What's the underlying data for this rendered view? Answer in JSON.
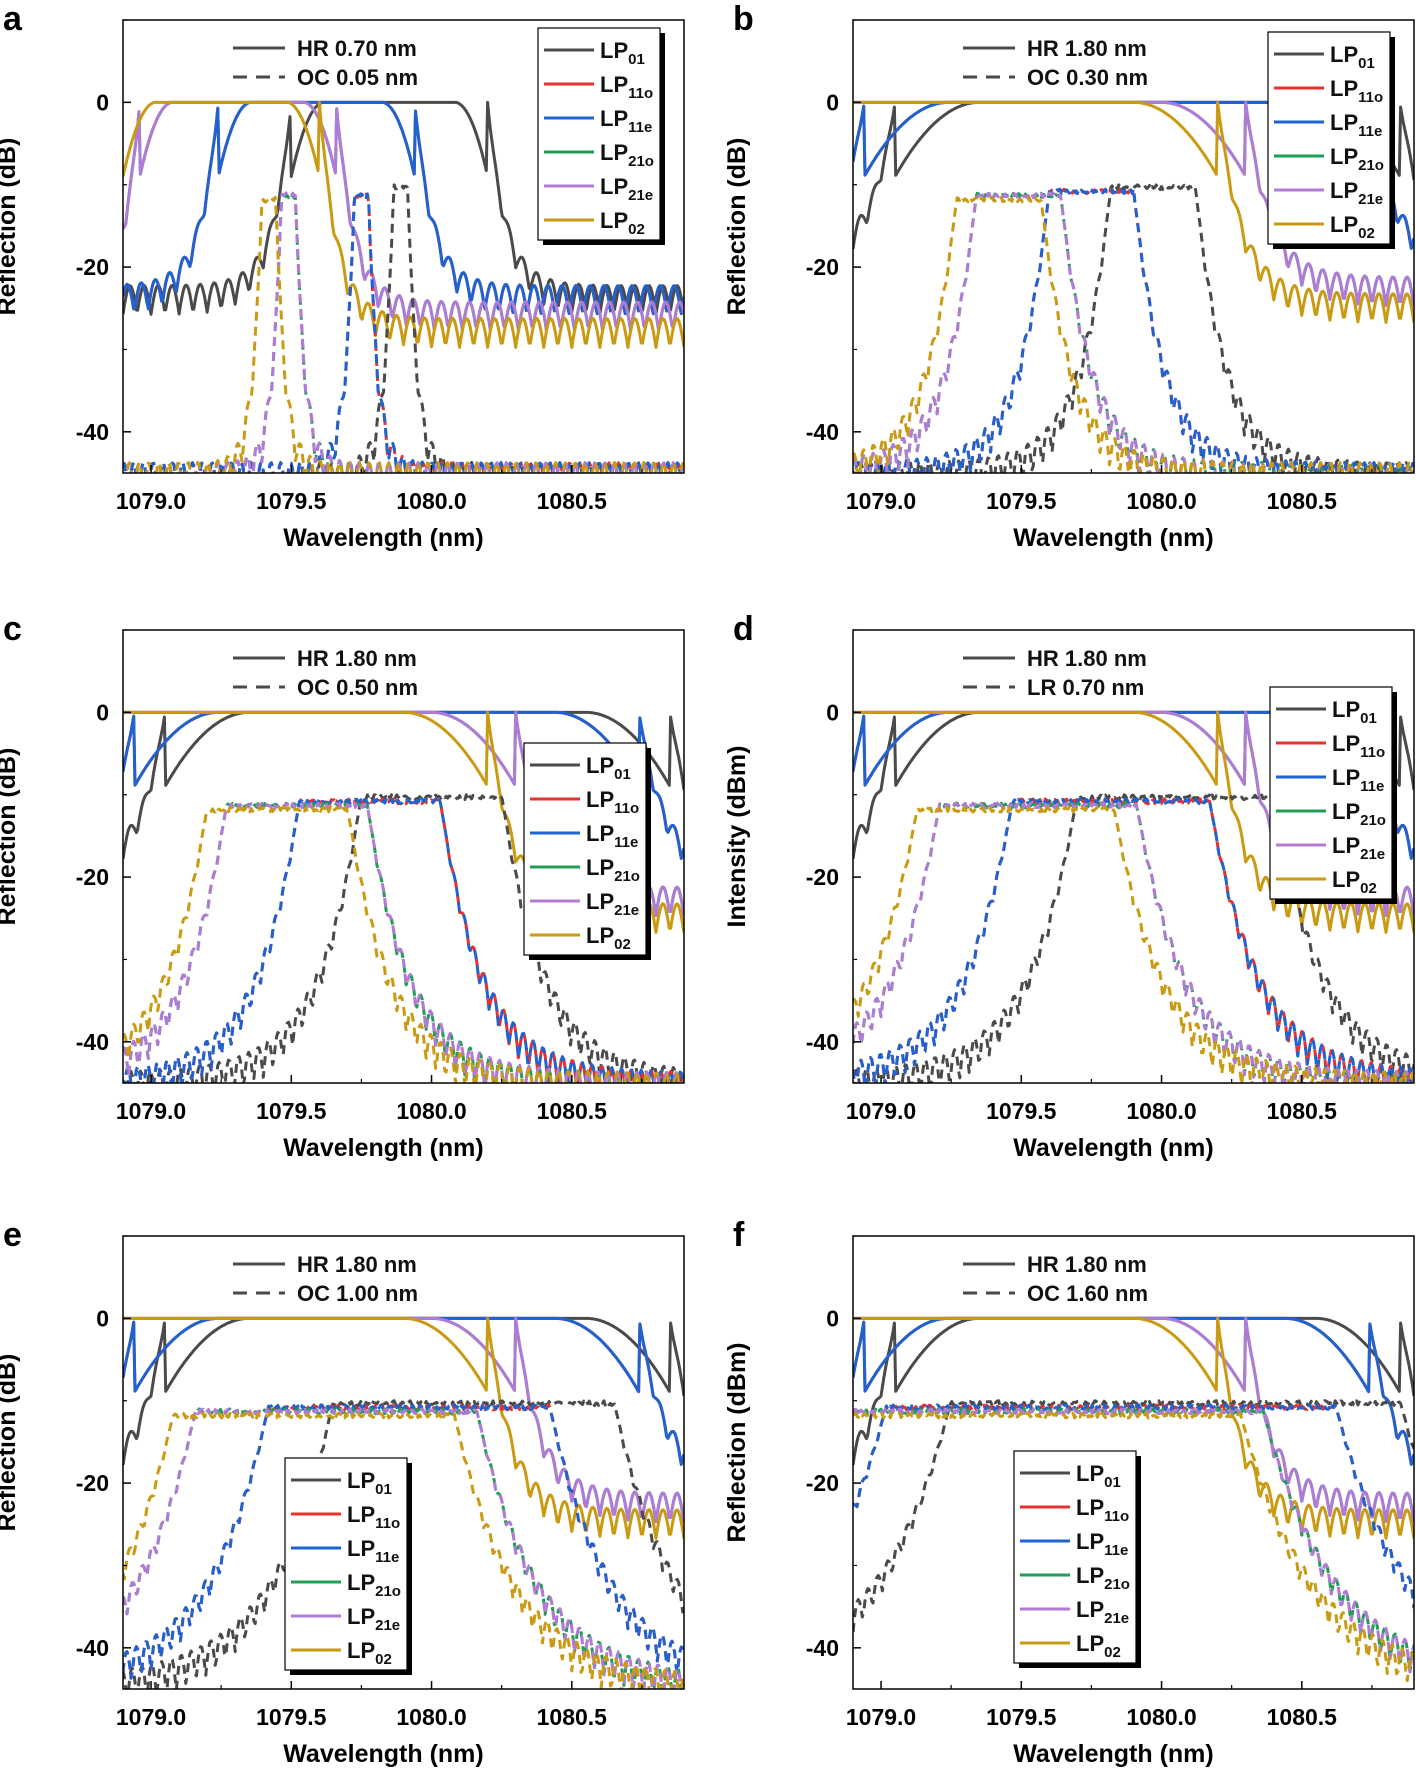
{
  "figure": {
    "colors": {
      "LP01": "#4a4a4a",
      "LP11o": "#e8302f",
      "LP11e": "#1f63d1",
      "LP21o": "#1f9e55",
      "LP21e": "#b07ad6",
      "LP02": "#c99a12"
    },
    "mode_legend": [
      {
        "key": "LP01",
        "base": "LP",
        "sub": "01"
      },
      {
        "key": "LP11o",
        "base": "LP",
        "sub": "11o"
      },
      {
        "key": "LP11e",
        "base": "LP",
        "sub": "11e"
      },
      {
        "key": "LP21o",
        "base": "LP",
        "sub": "21o"
      },
      {
        "key": "LP21e",
        "base": "LP",
        "sub": "21e"
      },
      {
        "key": "LP02",
        "base": "LP",
        "sub": "02"
      }
    ],
    "x_ticks": [
      "1079.0",
      "1079.5",
      "1080.0",
      "1080.5"
    ],
    "xlabel": "Wavelength (nm)"
  },
  "chart_data": [
    {
      "type": "line",
      "panel": "a",
      "ylabel": "Reflection (dB)",
      "xlim": [
        1078.9,
        1080.9
      ],
      "ylim": [
        -45,
        10
      ],
      "y_ticks": [
        "0",
        "-20",
        "-40"
      ],
      "bandwidth_legend": {
        "solid": "HR 0.70 nm",
        "dashed": "OC 0.05 nm"
      },
      "series": [
        {
          "mode": "LP01",
          "style": "solid",
          "center": 1079.85,
          "fwhm": 0.7,
          "peak": 0,
          "edge": 0.03,
          "floor": -24
        },
        {
          "mode": "LP11o",
          "style": "solid",
          "center": 1079.59,
          "fwhm": 0.7,
          "peak": 0,
          "edge": 0.03,
          "floor": -24
        },
        {
          "mode": "LP11e",
          "style": "solid",
          "center": 1079.59,
          "fwhm": 0.7,
          "peak": 0,
          "edge": 0.03,
          "floor": -24
        },
        {
          "mode": "LP21o",
          "style": "solid",
          "center": 1079.31,
          "fwhm": 0.7,
          "peak": 0,
          "edge": 0.03,
          "floor": -26
        },
        {
          "mode": "LP21e",
          "style": "solid",
          "center": 1079.31,
          "fwhm": 0.7,
          "peak": 0,
          "edge": 0.03,
          "floor": -26
        },
        {
          "mode": "LP02",
          "style": "solid",
          "center": 1079.25,
          "fwhm": 0.7,
          "peak": 0,
          "edge": 0.03,
          "floor": -28
        },
        {
          "mode": "LP01",
          "style": "dashed",
          "center": 1079.89,
          "fwhm": 0.05,
          "peak": -10,
          "edge": 0.015,
          "floor": -46
        },
        {
          "mode": "LP11o",
          "style": "dashed",
          "center": 1079.75,
          "fwhm": 0.05,
          "peak": -11,
          "edge": 0.015,
          "floor": -46
        },
        {
          "mode": "LP11e",
          "style": "dashed",
          "center": 1079.75,
          "fwhm": 0.05,
          "peak": -11,
          "edge": 0.015,
          "floor": -46
        },
        {
          "mode": "LP21o",
          "style": "dashed",
          "center": 1079.49,
          "fwhm": 0.05,
          "peak": -11,
          "edge": 0.015,
          "floor": -46
        },
        {
          "mode": "LP21e",
          "style": "dashed",
          "center": 1079.49,
          "fwhm": 0.05,
          "peak": -11,
          "edge": 0.015,
          "floor": -46
        },
        {
          "mode": "LP02",
          "style": "dashed",
          "center": 1079.42,
          "fwhm": 0.05,
          "peak": -11.5,
          "edge": 0.015,
          "floor": -46
        }
      ]
    },
    {
      "type": "line",
      "panel": "b",
      "ylabel": "Reflection (dB)",
      "xlim": [
        1078.9,
        1080.9
      ],
      "ylim": [
        -45,
        10
      ],
      "y_ticks": [
        "0",
        "-20",
        "-40"
      ],
      "bandwidth_legend": {
        "solid": "HR 1.80 nm",
        "dashed": "OC 0.30 nm"
      },
      "series": [
        {
          "mode": "LP01",
          "style": "solid",
          "center": 1079.95,
          "fwhm": 1.8,
          "peak": 0,
          "edge": 0.04,
          "floor": -20
        },
        {
          "mode": "LP11o",
          "style": "solid",
          "center": 1079.84,
          "fwhm": 1.8,
          "peak": 0,
          "edge": 0.04,
          "floor": -20
        },
        {
          "mode": "LP11e",
          "style": "solid",
          "center": 1079.84,
          "fwhm": 1.8,
          "peak": 0,
          "edge": 0.04,
          "floor": -20
        },
        {
          "mode": "LP21o",
          "style": "solid",
          "center": 1079.4,
          "fwhm": 1.8,
          "peak": 0,
          "edge": 0.04,
          "floor": -23
        },
        {
          "mode": "LP21e",
          "style": "solid",
          "center": 1079.4,
          "fwhm": 1.8,
          "peak": 0,
          "edge": 0.04,
          "floor": -23
        },
        {
          "mode": "LP02",
          "style": "solid",
          "center": 1079.3,
          "fwhm": 1.8,
          "peak": 0,
          "edge": 0.04,
          "floor": -25
        },
        {
          "mode": "LP01",
          "style": "dashed",
          "center": 1079.97,
          "fwhm": 0.3,
          "peak": -10,
          "edge": 0.05,
          "floor": -46
        },
        {
          "mode": "LP11o",
          "style": "dashed",
          "center": 1079.75,
          "fwhm": 0.3,
          "peak": -10.5,
          "edge": 0.05,
          "floor": -46
        },
        {
          "mode": "LP11e",
          "style": "dashed",
          "center": 1079.75,
          "fwhm": 0.3,
          "peak": -10.5,
          "edge": 0.05,
          "floor": -46
        },
        {
          "mode": "LP21o",
          "style": "dashed",
          "center": 1079.49,
          "fwhm": 0.3,
          "peak": -11,
          "edge": 0.05,
          "floor": -46
        },
        {
          "mode": "LP21e",
          "style": "dashed",
          "center": 1079.49,
          "fwhm": 0.3,
          "peak": -11,
          "edge": 0.05,
          "floor": -46
        },
        {
          "mode": "LP02",
          "style": "dashed",
          "center": 1079.42,
          "fwhm": 0.3,
          "peak": -11.5,
          "edge": 0.05,
          "floor": -46
        }
      ]
    },
    {
      "type": "line",
      "panel": "c",
      "ylabel": "Reflection (dB)",
      "xlim": [
        1078.9,
        1080.9
      ],
      "ylim": [
        -45,
        10
      ],
      "y_ticks": [
        "0",
        "-20",
        "-40"
      ],
      "bandwidth_legend": {
        "solid": "HR 1.80 nm",
        "dashed": "OC 0.50 nm"
      },
      "series": [
        {
          "mode": "LP01",
          "style": "solid",
          "center": 1079.95,
          "fwhm": 1.8,
          "peak": 0,
          "edge": 0.04,
          "floor": -20
        },
        {
          "mode": "LP11o",
          "style": "solid",
          "center": 1079.84,
          "fwhm": 1.8,
          "peak": 0,
          "edge": 0.04,
          "floor": -20
        },
        {
          "mode": "LP11e",
          "style": "solid",
          "center": 1079.84,
          "fwhm": 1.8,
          "peak": 0,
          "edge": 0.04,
          "floor": -20
        },
        {
          "mode": "LP21o",
          "style": "solid",
          "center": 1079.4,
          "fwhm": 1.8,
          "peak": 0,
          "edge": 0.04,
          "floor": -23
        },
        {
          "mode": "LP21e",
          "style": "solid",
          "center": 1079.4,
          "fwhm": 1.8,
          "peak": 0,
          "edge": 0.04,
          "floor": -23
        },
        {
          "mode": "LP02",
          "style": "solid",
          "center": 1079.3,
          "fwhm": 1.8,
          "peak": 0,
          "edge": 0.04,
          "floor": -25
        },
        {
          "mode": "LP01",
          "style": "dashed",
          "center": 1080.0,
          "fwhm": 0.5,
          "peak": -10,
          "edge": 0.07,
          "floor": -46
        },
        {
          "mode": "LP11o",
          "style": "dashed",
          "center": 1079.78,
          "fwhm": 0.5,
          "peak": -10.5,
          "edge": 0.07,
          "floor": -46
        },
        {
          "mode": "LP11e",
          "style": "dashed",
          "center": 1079.78,
          "fwhm": 0.5,
          "peak": -10.5,
          "edge": 0.07,
          "floor": -46
        },
        {
          "mode": "LP21o",
          "style": "dashed",
          "center": 1079.52,
          "fwhm": 0.5,
          "peak": -11,
          "edge": 0.07,
          "floor": -46
        },
        {
          "mode": "LP21e",
          "style": "dashed",
          "center": 1079.52,
          "fwhm": 0.5,
          "peak": -11,
          "edge": 0.07,
          "floor": -46
        },
        {
          "mode": "LP02",
          "style": "dashed",
          "center": 1079.45,
          "fwhm": 0.5,
          "peak": -11.5,
          "edge": 0.07,
          "floor": -46
        }
      ]
    },
    {
      "type": "line",
      "panel": "d",
      "ylabel": "Intensity (dBm)",
      "xlim": [
        1078.9,
        1080.9
      ],
      "ylim": [
        -45,
        10
      ],
      "y_ticks": [
        "0",
        "-20",
        "-40"
      ],
      "bandwidth_legend": {
        "solid": "HR 1.80 nm",
        "dashed": "LR 0.70 nm"
      },
      "series": [
        {
          "mode": "LP01",
          "style": "solid",
          "center": 1079.95,
          "fwhm": 1.8,
          "peak": 0,
          "edge": 0.04,
          "floor": -20
        },
        {
          "mode": "LP11o",
          "style": "solid",
          "center": 1079.84,
          "fwhm": 1.8,
          "peak": 0,
          "edge": 0.04,
          "floor": -20
        },
        {
          "mode": "LP11e",
          "style": "solid",
          "center": 1079.84,
          "fwhm": 1.8,
          "peak": 0,
          "edge": 0.04,
          "floor": -20
        },
        {
          "mode": "LP21o",
          "style": "solid",
          "center": 1079.4,
          "fwhm": 1.8,
          "peak": 0,
          "edge": 0.04,
          "floor": -23
        },
        {
          "mode": "LP21e",
          "style": "solid",
          "center": 1079.4,
          "fwhm": 1.8,
          "peak": 0,
          "edge": 0.04,
          "floor": -23
        },
        {
          "mode": "LP02",
          "style": "solid",
          "center": 1079.3,
          "fwhm": 1.8,
          "peak": 0,
          "edge": 0.04,
          "floor": -25
        },
        {
          "mode": "LP01",
          "style": "dashed",
          "center": 1080.05,
          "fwhm": 0.7,
          "peak": -10,
          "edge": 0.08,
          "floor": -46
        },
        {
          "mode": "LP11o",
          "style": "dashed",
          "center": 1079.82,
          "fwhm": 0.7,
          "peak": -10.5,
          "edge": 0.08,
          "floor": -46
        },
        {
          "mode": "LP11e",
          "style": "dashed",
          "center": 1079.82,
          "fwhm": 0.7,
          "peak": -10.5,
          "edge": 0.08,
          "floor": -46
        },
        {
          "mode": "LP21o",
          "style": "dashed",
          "center": 1079.56,
          "fwhm": 0.7,
          "peak": -11,
          "edge": 0.08,
          "floor": -46
        },
        {
          "mode": "LP21e",
          "style": "dashed",
          "center": 1079.56,
          "fwhm": 0.7,
          "peak": -11,
          "edge": 0.08,
          "floor": -46
        },
        {
          "mode": "LP02",
          "style": "dashed",
          "center": 1079.48,
          "fwhm": 0.7,
          "peak": -11.5,
          "edge": 0.08,
          "floor": -46
        }
      ]
    },
    {
      "type": "line",
      "panel": "e",
      "ylabel": "Reflection (dB)",
      "xlim": [
        1078.9,
        1080.9
      ],
      "ylim": [
        -45,
        10
      ],
      "y_ticks": [
        "0",
        "-20",
        "-40"
      ],
      "bandwidth_legend": {
        "solid": "HR 1.80 nm",
        "dashed": "OC 1.00 nm"
      },
      "series": [
        {
          "mode": "LP01",
          "style": "solid",
          "center": 1079.95,
          "fwhm": 1.8,
          "peak": 0,
          "edge": 0.04,
          "floor": -20
        },
        {
          "mode": "LP11o",
          "style": "solid",
          "center": 1079.84,
          "fwhm": 1.8,
          "peak": 0,
          "edge": 0.04,
          "floor": -20
        },
        {
          "mode": "LP11e",
          "style": "solid",
          "center": 1079.84,
          "fwhm": 1.8,
          "peak": 0,
          "edge": 0.04,
          "floor": -20
        },
        {
          "mode": "LP21o",
          "style": "solid",
          "center": 1079.4,
          "fwhm": 1.8,
          "peak": 0,
          "edge": 0.04,
          "floor": -23
        },
        {
          "mode": "LP21e",
          "style": "solid",
          "center": 1079.4,
          "fwhm": 1.8,
          "peak": 0,
          "edge": 0.04,
          "floor": -23
        },
        {
          "mode": "LP02",
          "style": "solid",
          "center": 1079.3,
          "fwhm": 1.8,
          "peak": 0,
          "edge": 0.04,
          "floor": -25
        },
        {
          "mode": "LP01",
          "style": "dashed",
          "center": 1080.15,
          "fwhm": 1.0,
          "peak": -10,
          "edge": 0.1,
          "floor": -46
        },
        {
          "mode": "LP11o",
          "style": "dashed",
          "center": 1079.92,
          "fwhm": 1.0,
          "peak": -10.5,
          "edge": 0.1,
          "floor": -46
        },
        {
          "mode": "LP11e",
          "style": "dashed",
          "center": 1079.92,
          "fwhm": 1.0,
          "peak": -10.5,
          "edge": 0.1,
          "floor": -46
        },
        {
          "mode": "LP21o",
          "style": "dashed",
          "center": 1079.66,
          "fwhm": 1.0,
          "peak": -11,
          "edge": 0.1,
          "floor": -46
        },
        {
          "mode": "LP21e",
          "style": "dashed",
          "center": 1079.66,
          "fwhm": 1.0,
          "peak": -11,
          "edge": 0.1,
          "floor": -46
        },
        {
          "mode": "LP02",
          "style": "dashed",
          "center": 1079.58,
          "fwhm": 1.0,
          "peak": -11.5,
          "edge": 0.1,
          "floor": -46
        }
      ]
    },
    {
      "type": "line",
      "panel": "f",
      "ylabel": "Reflection (dBm)",
      "xlim": [
        1078.9,
        1080.9
      ],
      "ylim": [
        -45,
        10
      ],
      "y_ticks": [
        "0",
        "-20",
        "-40"
      ],
      "bandwidth_legend": {
        "solid": "HR 1.80 nm",
        "dashed": "OC 1.60 nm"
      },
      "series": [
        {
          "mode": "LP01",
          "style": "solid",
          "center": 1079.95,
          "fwhm": 1.8,
          "peak": 0,
          "edge": 0.04,
          "floor": -20
        },
        {
          "mode": "LP11o",
          "style": "solid",
          "center": 1079.84,
          "fwhm": 1.8,
          "peak": 0,
          "edge": 0.04,
          "floor": -20
        },
        {
          "mode": "LP11e",
          "style": "solid",
          "center": 1079.84,
          "fwhm": 1.8,
          "peak": 0,
          "edge": 0.04,
          "floor": -20
        },
        {
          "mode": "LP21o",
          "style": "solid",
          "center": 1079.4,
          "fwhm": 1.8,
          "peak": 0,
          "edge": 0.04,
          "floor": -23
        },
        {
          "mode": "LP21e",
          "style": "solid",
          "center": 1079.4,
          "fwhm": 1.8,
          "peak": 0,
          "edge": 0.04,
          "floor": -23
        },
        {
          "mode": "LP02",
          "style": "solid",
          "center": 1079.3,
          "fwhm": 1.8,
          "peak": 0,
          "edge": 0.04,
          "floor": -25
        },
        {
          "mode": "LP01",
          "style": "dashed",
          "center": 1080.05,
          "fwhm": 1.6,
          "peak": -10,
          "edge": 0.12,
          "floor": -46
        },
        {
          "mode": "LP11o",
          "style": "dashed",
          "center": 1079.82,
          "fwhm": 1.6,
          "peak": -10.5,
          "edge": 0.12,
          "floor": -46
        },
        {
          "mode": "LP11e",
          "style": "dashed",
          "center": 1079.82,
          "fwhm": 1.6,
          "peak": -10.5,
          "edge": 0.12,
          "floor": -46
        },
        {
          "mode": "LP21o",
          "style": "dashed",
          "center": 1079.56,
          "fwhm": 1.6,
          "peak": -11,
          "edge": 0.12,
          "floor": -46
        },
        {
          "mode": "LP21e",
          "style": "dashed",
          "center": 1079.56,
          "fwhm": 1.6,
          "peak": -11,
          "edge": 0.12,
          "floor": -46
        },
        {
          "mode": "LP02",
          "style": "dashed",
          "center": 1079.48,
          "fwhm": 1.6,
          "peak": -11.5,
          "edge": 0.12,
          "floor": -46
        }
      ]
    }
  ]
}
